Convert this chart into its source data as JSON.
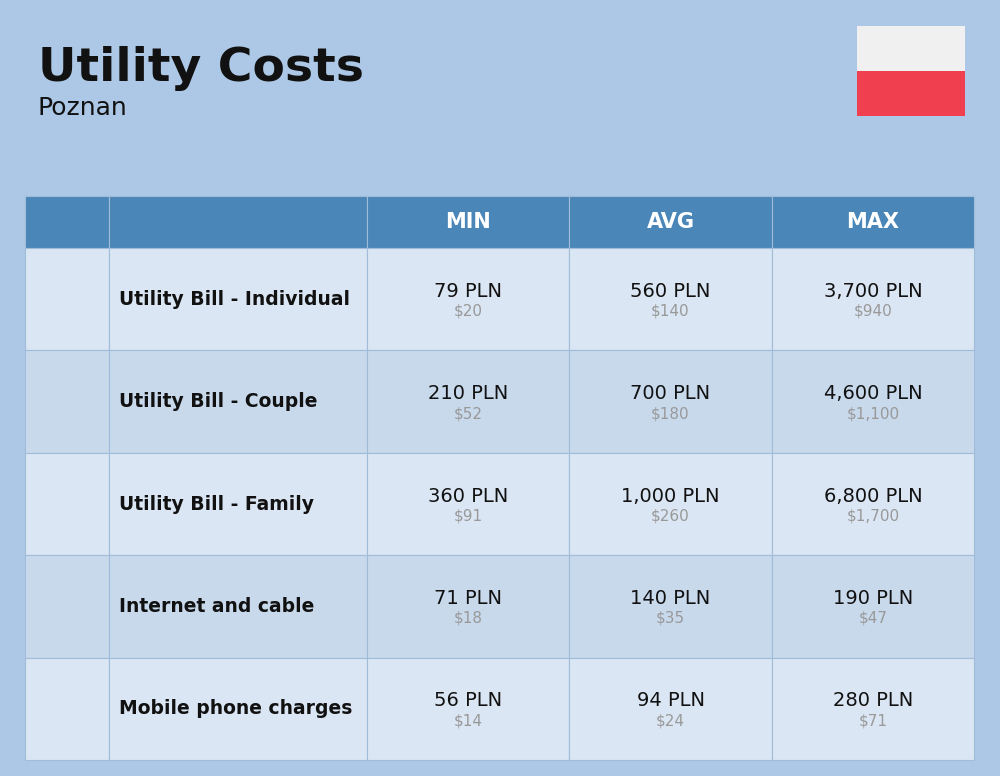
{
  "title": "Utility Costs",
  "subtitle": "Poznan",
  "background_color": "#adc8e6",
  "header_color": "#4a86b8",
  "header_text_color": "#ffffff",
  "row_color_even": "#dae6f3",
  "row_color_odd": "#c8d9ec",
  "cell_border_color": "#a0bcd8",
  "title_color": "#111111",
  "subtitle_color": "#111111",
  "pln_color": "#111111",
  "usd_color": "#999999",
  "label_color": "#111111",
  "header_labels": [
    "MIN",
    "AVG",
    "MAX"
  ],
  "flag_white": "#f0f0f0",
  "flag_red": "#f04050",
  "rows": [
    {
      "label": "Utility Bill - Individual",
      "min_pln": "79 PLN",
      "min_usd": "$20",
      "avg_pln": "560 PLN",
      "avg_usd": "$140",
      "max_pln": "3,700 PLN",
      "max_usd": "$940"
    },
    {
      "label": "Utility Bill - Couple",
      "min_pln": "210 PLN",
      "min_usd": "$52",
      "avg_pln": "700 PLN",
      "avg_usd": "$180",
      "max_pln": "4,600 PLN",
      "max_usd": "$1,100"
    },
    {
      "label": "Utility Bill - Family",
      "min_pln": "360 PLN",
      "min_usd": "$91",
      "avg_pln": "1,000 PLN",
      "avg_usd": "$260",
      "max_pln": "6,800 PLN",
      "max_usd": "$1,700"
    },
    {
      "label": "Internet and cable",
      "min_pln": "71 PLN",
      "min_usd": "$18",
      "avg_pln": "140 PLN",
      "avg_usd": "$35",
      "max_pln": "190 PLN",
      "max_usd": "$47"
    },
    {
      "label": "Mobile phone charges",
      "min_pln": "56 PLN",
      "min_usd": "$14",
      "avg_pln": "94 PLN",
      "avg_usd": "$24",
      "max_pln": "280 PLN",
      "max_usd": "$71"
    }
  ],
  "figsize": [
    10.0,
    7.76
  ],
  "dpi": 100
}
